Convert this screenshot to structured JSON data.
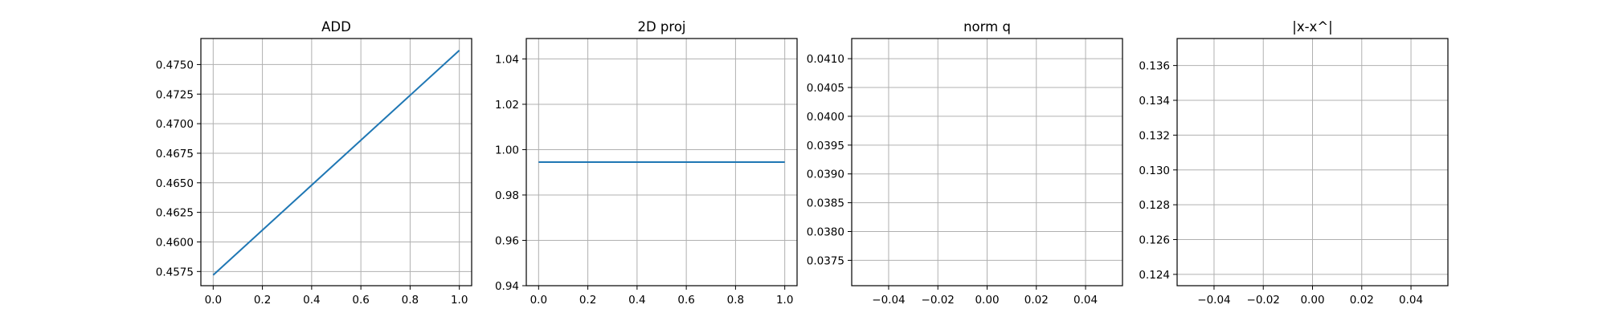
{
  "figure": {
    "background": "#ffffff",
    "line_color": "#1f77b4",
    "grid_color": "#b0b0b0",
    "axes_color": "#000000"
  },
  "chart_data": [
    {
      "type": "line",
      "title": "ADD",
      "xlabel": "",
      "ylabel": "",
      "grid": true,
      "xlim": [
        -0.05,
        1.05
      ],
      "ylim": [
        0.4563,
        0.4772
      ],
      "x_ticks": [
        0.0,
        0.2,
        0.4,
        0.6,
        0.8,
        1.0
      ],
      "x_tick_labels": [
        "0.0",
        "0.2",
        "0.4",
        "0.6",
        "0.8",
        "1.0"
      ],
      "y_ticks": [
        0.4575,
        0.46,
        0.4625,
        0.465,
        0.4675,
        0.47,
        0.4725,
        0.475
      ],
      "y_tick_labels": [
        "0.4575",
        "0.4600",
        "0.4625",
        "0.4650",
        "0.4675",
        "0.4700",
        "0.4725",
        "0.4750"
      ],
      "series": [
        {
          "x": [
            0.0,
            1.0
          ],
          "y": [
            0.4572,
            0.4762
          ]
        }
      ]
    },
    {
      "type": "line",
      "title": "2D proj",
      "xlabel": "",
      "ylabel": "",
      "grid": true,
      "xlim": [
        -0.05,
        1.05
      ],
      "ylim": [
        0.94,
        1.049
      ],
      "x_ticks": [
        0.0,
        0.2,
        0.4,
        0.6,
        0.8,
        1.0
      ],
      "x_tick_labels": [
        "0.0",
        "0.2",
        "0.4",
        "0.6",
        "0.8",
        "1.0"
      ],
      "y_ticks": [
        0.94,
        0.96,
        0.98,
        1.0,
        1.02,
        1.04
      ],
      "y_tick_labels": [
        "0.94",
        "0.96",
        "0.98",
        "1.00",
        "1.02",
        "1.04"
      ],
      "series": [
        {
          "x": [
            0.0,
            1.0
          ],
          "y": [
            0.9945,
            0.9945
          ]
        }
      ]
    },
    {
      "type": "line",
      "title": "norm q",
      "xlabel": "",
      "ylabel": "",
      "grid": true,
      "xlim": [
        -0.055,
        0.055
      ],
      "ylim": [
        0.03706,
        0.04135
      ],
      "x_ticks": [
        -0.04,
        -0.02,
        0.0,
        0.02,
        0.04
      ],
      "x_tick_labels": [
        "−0.04",
        "−0.02",
        "0.00",
        "0.02",
        "0.04"
      ],
      "y_ticks": [
        0.0375,
        0.038,
        0.0385,
        0.039,
        0.0395,
        0.04,
        0.0405,
        0.041
      ],
      "y_tick_labels": [
        "0.0375",
        "0.0380",
        "0.0385",
        "0.0390",
        "0.0395",
        "0.0400",
        "0.0405",
        "0.0410"
      ],
      "series": []
    },
    {
      "type": "line",
      "title": "|x-x^|",
      "xlabel": "",
      "ylabel": "",
      "grid": true,
      "xlim": [
        -0.055,
        0.055
      ],
      "ylim": [
        0.12335,
        0.13755
      ],
      "x_ticks": [
        -0.04,
        -0.02,
        0.0,
        0.02,
        0.04
      ],
      "x_tick_labels": [
        "−0.04",
        "−0.02",
        "0.00",
        "0.02",
        "0.04"
      ],
      "y_ticks": [
        0.124,
        0.126,
        0.128,
        0.13,
        0.132,
        0.134,
        0.136
      ],
      "y_tick_labels": [
        "0.124",
        "0.126",
        "0.128",
        "0.130",
        "0.132",
        "0.134",
        "0.136"
      ],
      "series": []
    }
  ]
}
